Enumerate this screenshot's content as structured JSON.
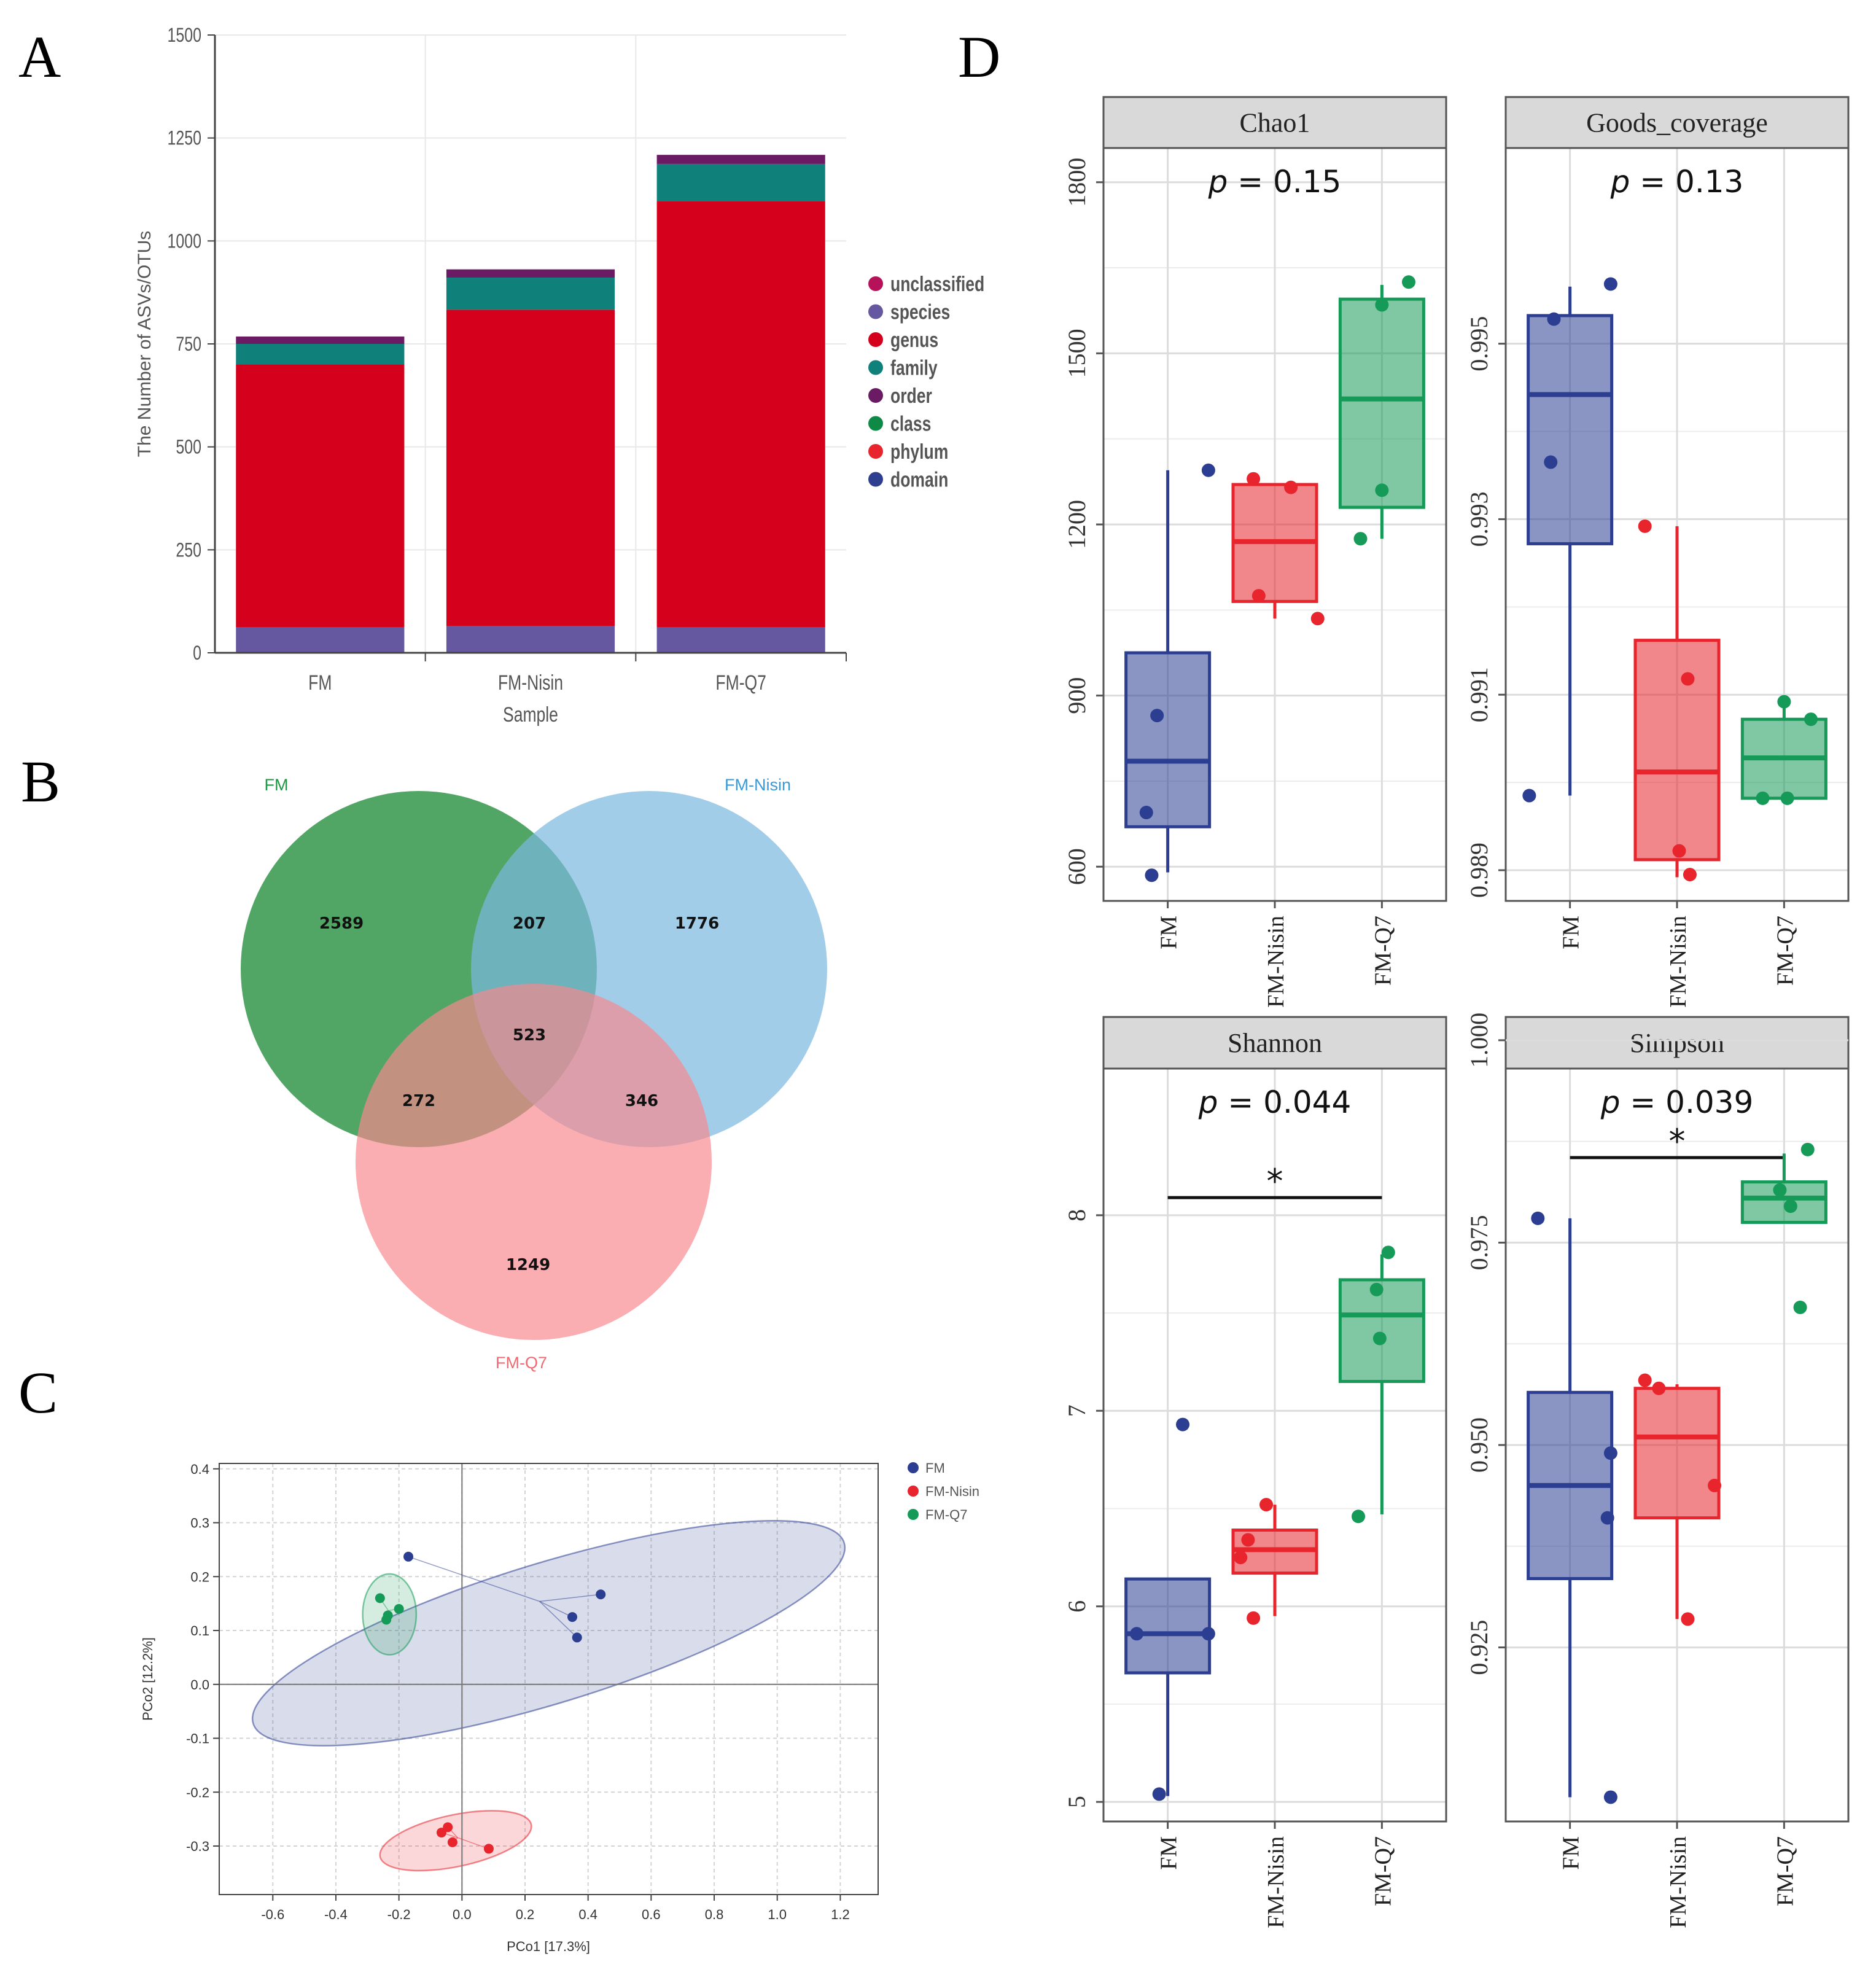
{
  "colors": {
    "domain": "#2e3f8f",
    "phylum": "#e8242c",
    "class": "#0f8a46",
    "order": "#6a1b63",
    "family": "#10807a",
    "genus": "#d4001c",
    "species": "#6557a0",
    "unclassified": "#b5125a",
    "FM": "#2c3e92",
    "FM_Nisin": "#e8242c",
    "FM_Q7": "#159a58",
    "venn_FM": "#3a9a50",
    "venn_Nisin": "#7ab8e0",
    "venn_Q7": "#f7878e",
    "strip_bg": "#d9d9d9",
    "grid": "#dcdcdc"
  },
  "panels": {
    "A": "A",
    "B": "B",
    "C": "C",
    "D": "D"
  },
  "chart_data": [
    {
      "id": "A",
      "type": "bar",
      "stacked": true,
      "title": "",
      "xlabel": "Sample",
      "ylabel": "The Number of ASVs/OTUs",
      "ylim": [
        0,
        1500
      ],
      "yticks": [
        0,
        250,
        500,
        750,
        1000,
        1250,
        1500
      ],
      "categories": [
        "FM",
        "FM-Nisin",
        "FM-Q7"
      ],
      "legend_position": "right",
      "legend": [
        "unclassified",
        "species",
        "genus",
        "family",
        "order",
        "class",
        "phylum",
        "domain"
      ],
      "series": [
        {
          "name": "species",
          "values": [
            62,
            65,
            62
          ]
        },
        {
          "name": "genus",
          "values": [
            638,
            768,
            1035
          ]
        },
        {
          "name": "family",
          "values": [
            50,
            78,
            90
          ]
        },
        {
          "name": "order",
          "values": [
            18,
            20,
            22
          ]
        }
      ]
    },
    {
      "id": "B",
      "type": "venn",
      "sets": [
        "FM",
        "FM-Nisin",
        "FM-Q7"
      ],
      "regions": [
        {
          "sets": [
            "FM"
          ],
          "value": "2589"
        },
        {
          "sets": [
            "FM-Nisin"
          ],
          "value": "1776"
        },
        {
          "sets": [
            "FM-Q7"
          ],
          "value": "1249"
        },
        {
          "sets": [
            "FM",
            "FM-Nisin"
          ],
          "value": "207"
        },
        {
          "sets": [
            "FM",
            "FM-Q7"
          ],
          "value": "272"
        },
        {
          "sets": [
            "FM-Nisin",
            "FM-Q7"
          ],
          "value": "346"
        },
        {
          "sets": [
            "FM",
            "FM-Nisin",
            "FM-Q7"
          ],
          "value": "523"
        }
      ]
    },
    {
      "id": "C",
      "type": "scatter",
      "xlabel": "PCo1 [17.3%]",
      "ylabel": "PCo2 [12.2%]",
      "xlim": [
        -0.77,
        1.32
      ],
      "ylim": [
        -0.39,
        0.41
      ],
      "xticks": [
        -0.6,
        -0.4,
        -0.2,
        0.0,
        0.2,
        0.4,
        0.6,
        0.8,
        1.0,
        1.2
      ],
      "yticks": [
        -0.3,
        -0.2,
        -0.1,
        0.0,
        0.1,
        0.2,
        0.3,
        0.4
      ],
      "xtick_labels": [
        "-0.6",
        "-0.4",
        "-0.2",
        "0.0",
        "0.2",
        "0.4",
        "0.6",
        "0.8",
        "1.0",
        "1.2"
      ],
      "ytick_labels": [
        "-0.3",
        "-0.2",
        "-0.1",
        "0.0",
        "0.1",
        "0.2",
        "0.3",
        "0.4"
      ],
      "legend_position": "top-right",
      "series": [
        {
          "name": "FM",
          "colorKey": "FM",
          "points": [
            [
              -0.17,
              0.237
            ],
            [
              0.44,
              0.167
            ],
            [
              0.35,
              0.125
            ],
            [
              0.365,
              0.087
            ]
          ],
          "ellipse": {
            "cx": 0.275,
            "cy": 0.095,
            "rx": 0.98,
            "ry": 0.13,
            "angle": -17
          }
        },
        {
          "name": "FM-Nisin",
          "colorKey": "FM_Nisin",
          "points": [
            [
              -0.065,
              -0.275
            ],
            [
              -0.045,
              -0.265
            ],
            [
              -0.03,
              -0.293
            ],
            [
              0.085,
              -0.305
            ]
          ],
          "ellipse": {
            "cx": -0.02,
            "cy": -0.29,
            "rx": 0.245,
            "ry": 0.048,
            "angle": -12
          }
        },
        {
          "name": "FM-Q7",
          "colorKey": "FM_Q7",
          "points": [
            [
              -0.26,
              0.16
            ],
            [
              -0.24,
              0.12
            ],
            [
              -0.235,
              0.128
            ],
            [
              -0.2,
              0.14
            ]
          ],
          "ellipse": {
            "cx": -0.23,
            "cy": 0.13,
            "rx": 0.085,
            "ry": 0.075,
            "angle": 0
          }
        }
      ]
    },
    {
      "id": "D",
      "type": "boxplot",
      "categories": [
        "FM",
        "FM-Nisin",
        "FM-Q7"
      ],
      "facets": [
        {
          "title": "Chao1",
          "p_label": "p",
          "p_value": "= 0.15",
          "signif": "",
          "ylim": [
            540,
            1860
          ],
          "yticks": [
            600,
            900,
            1200,
            1500,
            1800
          ],
          "ytick_labels": [
            "600",
            "900",
            "1200",
            "1500",
            "1800"
          ],
          "boxes": [
            {
              "q1": 670,
              "median": 785,
              "q3": 975,
              "whisker_low": 590,
              "whisker_high": 1295
            },
            {
              "q1": 1065,
              "median": 1170,
              "q3": 1270,
              "whisker_low": 1035,
              "whisker_high": 1270
            },
            {
              "q1": 1230,
              "median": 1420,
              "q3": 1595,
              "whisker_low": 1175,
              "whisker_high": 1620
            }
          ],
          "points": [
            [
              [
                0.85,
                585
              ],
              [
                0.8,
                695
              ],
              [
                0.9,
                865
              ],
              [
                1.38,
                1295
              ]
            ],
            [
              [
                1.8,
                1280
              ],
              [
                1.85,
                1075
              ],
              [
                2.15,
                1265
              ],
              [
                2.4,
                1035
              ]
            ],
            [
              [
                2.8,
                1175
              ],
              [
                3.0,
                1585
              ],
              [
                3.0,
                1260
              ],
              [
                3.25,
                1625
              ]
            ]
          ]
        },
        {
          "title": "Goods_coverage",
          "p_label": "p",
          "p_value": "= 0.13",
          "signif": "",
          "ylim": [
            0.98865,
            0.99723
          ],
          "yticks": [
            0.989,
            0.991,
            0.993,
            0.995
          ],
          "ytick_labels": [
            "0.989",
            "0.991",
            "0.993",
            "0.995"
          ],
          "boxes": [
            {
              "q1": 0.99272,
              "median": 0.99442,
              "q3": 0.99532,
              "whisker_low": 0.98985,
              "whisker_high": 0.99565
            },
            {
              "q1": 0.98912,
              "median": 0.99012,
              "q3": 0.99162,
              "whisker_low": 0.98892,
              "whisker_high": 0.99292
            },
            {
              "q1": 0.98982,
              "median": 0.99028,
              "q3": 0.99072,
              "whisker_low": 0.98982,
              "whisker_high": 0.99092
            }
          ],
          "points": [
            [
              [
                0.85,
                0.99528
              ],
              [
                0.82,
                0.99365
              ],
              [
                0.62,
                0.98985
              ],
              [
                1.38,
                0.99568
              ]
            ],
            [
              [
                1.7,
                0.99292
              ],
              [
                2.1,
                0.99118
              ],
              [
                2.02,
                0.98922
              ],
              [
                2.12,
                0.98895
              ]
            ],
            [
              [
                3.0,
                0.99092
              ],
              [
                3.25,
                0.99072
              ],
              [
                2.8,
                0.98982
              ],
              [
                3.03,
                0.98982
              ]
            ]
          ]
        },
        {
          "title": "Shannon",
          "p_label": "p",
          "p_value": "= 0.044",
          "signif": "*",
          "ylim": [
            4.9,
            8.75
          ],
          "yticks": [
            5,
            6,
            7,
            8
          ],
          "ytick_labels": [
            "5",
            "6",
            "7",
            "8"
          ],
          "bracket": {
            "from": 1,
            "to": 3,
            "y": 8.09
          },
          "boxes": [
            {
              "q1": 5.66,
              "median": 5.86,
              "q3": 6.14,
              "whisker_low": 5.03,
              "whisker_high": 6.14
            },
            {
              "q1": 6.17,
              "median": 6.29,
              "q3": 6.39,
              "whisker_low": 5.95,
              "whisker_high": 6.52
            },
            {
              "q1": 7.15,
              "median": 7.49,
              "q3": 7.67,
              "whisker_low": 6.47,
              "whisker_high": 7.8
            }
          ],
          "points": [
            [
              [
                0.92,
                5.04
              ],
              [
                0.71,
                5.86
              ],
              [
                1.38,
                5.86
              ],
              [
                1.14,
                6.93
              ]
            ],
            [
              [
                1.68,
                6.25
              ],
              [
                1.75,
                6.34
              ],
              [
                1.8,
                5.94
              ],
              [
                1.92,
                6.52
              ]
            ],
            [
              [
                2.78,
                6.46
              ],
              [
                2.98,
                7.37
              ],
              [
                2.95,
                7.62
              ],
              [
                3.06,
                7.81
              ]
            ]
          ]
        },
        {
          "title": "Simpson",
          "p_label": "p",
          "p_value": "= 0.039",
          "signif": "*",
          "ylim": [
            0.9035,
            0.9965
          ],
          "yticks": [
            0.925,
            0.95,
            0.975,
            1.0
          ],
          "ytick_labels": [
            "0.925",
            "0.950",
            "0.975",
            "1.000"
          ],
          "bracket": {
            "from": 1,
            "to": 3,
            "y": 0.9855
          },
          "boxes": [
            {
              "q1": 0.9335,
              "median": 0.945,
              "q3": 0.9565,
              "whisker_low": 0.9065,
              "whisker_high": 0.978
            },
            {
              "q1": 0.941,
              "median": 0.951,
              "q3": 0.957,
              "whisker_low": 0.9285,
              "whisker_high": 0.9575
            },
            {
              "q1": 0.9775,
              "median": 0.9805,
              "q3": 0.9825,
              "whisker_low": 0.9775,
              "whisker_high": 0.986
            }
          ],
          "points": [
            [
              [
                0.7,
                0.978
              ],
              [
                1.38,
                0.949
              ],
              [
                1.35,
                0.941
              ],
              [
                1.38,
                0.9065
              ]
            ],
            [
              [
                1.7,
                0.958
              ],
              [
                1.83,
                0.957
              ],
              [
                2.35,
                0.945
              ],
              [
                2.1,
                0.9285
              ]
            ],
            [
              [
                2.96,
                0.9815
              ],
              [
                3.06,
                0.9795
              ],
              [
                3.15,
                0.967
              ],
              [
                3.22,
                0.9865
              ]
            ]
          ]
        }
      ]
    }
  ]
}
